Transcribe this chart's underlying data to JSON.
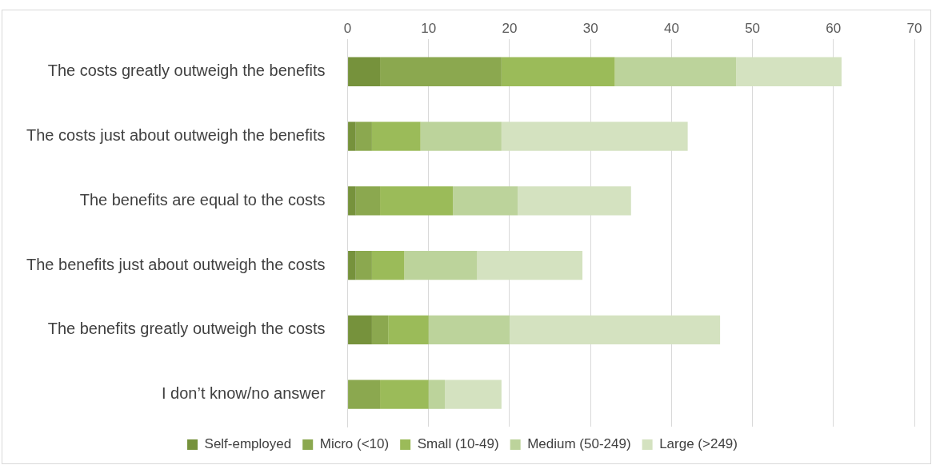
{
  "chart_data": {
    "type": "bar",
    "orientation": "horizontal",
    "stacked": true,
    "categories": [
      "The costs greatly outweigh the benefits",
      "The costs just about outweigh the benefits",
      "The benefits are equal to the costs",
      "The benefits just about outweigh the costs",
      "The benefits greatly outweigh the costs",
      "I don’t know/no answer"
    ],
    "series": [
      {
        "name": "Self-employed",
        "color": "#76923c",
        "values": [
          4,
          1,
          1,
          1,
          3,
          0
        ]
      },
      {
        "name": "Micro (<10)",
        "color": "#8ba84f",
        "values": [
          15,
          2,
          3,
          2,
          2,
          4
        ]
      },
      {
        "name": "Small (10-49)",
        "color": "#9bbb59",
        "values": [
          14,
          6,
          9,
          4,
          5,
          6
        ]
      },
      {
        "name": "Medium (50-249)",
        "color": "#bcd39b",
        "values": [
          15,
          10,
          8,
          9,
          10,
          2
        ]
      },
      {
        "name": "Large (>249)",
        "color": "#d4e2c0",
        "values": [
          13,
          23,
          14,
          13,
          26,
          7
        ]
      }
    ],
    "xlim": [
      0,
      70
    ],
    "xticks": [
      0,
      10,
      20,
      30,
      40,
      50,
      60,
      70
    ],
    "grid": "x",
    "legend": "bottom"
  }
}
